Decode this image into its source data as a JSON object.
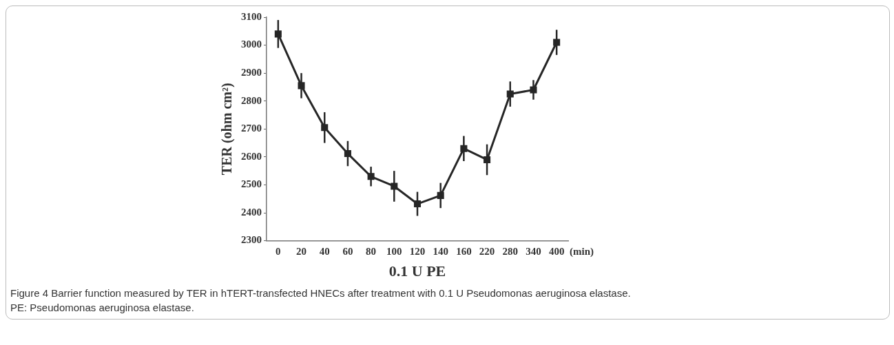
{
  "chart_data": {
    "type": "line",
    "ylabel": "TER (ohm cm²)",
    "xlabel": "0.1 U PE",
    "categories": [
      "0",
      "20",
      "40",
      "60",
      "80",
      "100",
      "120",
      "140",
      "160",
      "220",
      "280",
      "340",
      "400"
    ],
    "series": [
      {
        "color": "#262626",
        "values": [
          3040,
          2855,
          2705,
          2612,
          2530,
          2495,
          2432,
          2462,
          2630,
          2590,
          2825,
          2840,
          3010
        ],
        "errors": [
          50,
          45,
          55,
          45,
          35,
          55,
          43,
          45,
          45,
          55,
          45,
          35,
          45
        ]
      }
    ],
    "ylim": [
      2300,
      3100
    ],
    "yticks": [
      2300,
      2400,
      2500,
      2600,
      2700,
      2800,
      2900,
      3000,
      3100
    ],
    "marker": "square",
    "line_style": "solid",
    "grid": false,
    "legend": false,
    "annotations": [
      "(min)",
      "Figure 4 Barrier function measured by TER in hTERT-transfected HNECs after treatment with 0.1 U Pseudomonas aeruginosa elastase.",
      "PE: Pseudomonas aeruginosa elastase."
    ]
  }
}
